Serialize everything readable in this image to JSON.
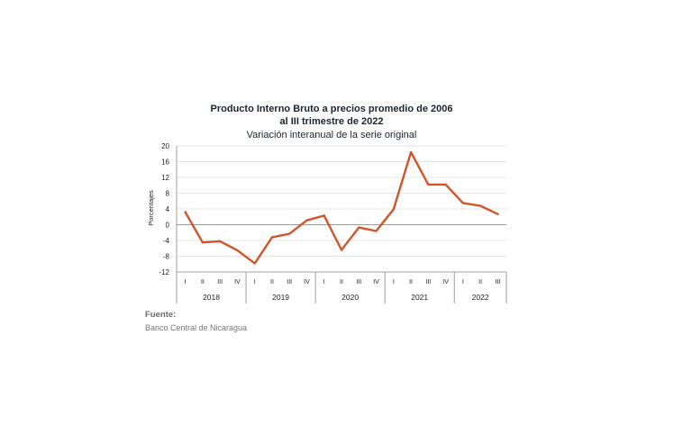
{
  "chart_data": {
    "type": "line",
    "title_line1": "Producto Interno Bruto a precios promedio de 2006",
    "title_line2": "al III trimestre de 2022",
    "subtitle": "Variación interanual de la serie original",
    "ylabel": "Porcentajes",
    "ylim": [
      -12,
      20
    ],
    "yticks": [
      20,
      16,
      12,
      8,
      4,
      0,
      -4,
      -8,
      -12
    ],
    "grid": true,
    "legend": "none",
    "years": [
      {
        "label": "2018",
        "quarters": [
          "I",
          "II",
          "III",
          "IV"
        ]
      },
      {
        "label": "2019",
        "quarters": [
          "I",
          "II",
          "III",
          "IV"
        ]
      },
      {
        "label": "2020",
        "quarters": [
          "I",
          "II",
          "III",
          "IV"
        ]
      },
      {
        "label": "2021",
        "quarters": [
          "I",
          "II",
          "III",
          "IV"
        ]
      },
      {
        "label": "2022",
        "quarters": [
          "I",
          "II",
          "III"
        ]
      }
    ],
    "series": [
      {
        "color": "#d4542a",
        "values": [
          3.2,
          -4.5,
          -4.2,
          -6.5,
          -9.8,
          -3.2,
          -2.3,
          1.1,
          2.3,
          -6.4,
          -0.7,
          -1.6,
          3.9,
          18.4,
          10.2,
          10.2,
          5.5,
          4.8,
          2.7
        ]
      }
    ]
  },
  "source": {
    "heading": "Fuente:",
    "text": "Banco Central de Nicaragua"
  },
  "colors": {
    "line": "#d4542a",
    "grid": "#dddddd",
    "axis": "#888888"
  }
}
